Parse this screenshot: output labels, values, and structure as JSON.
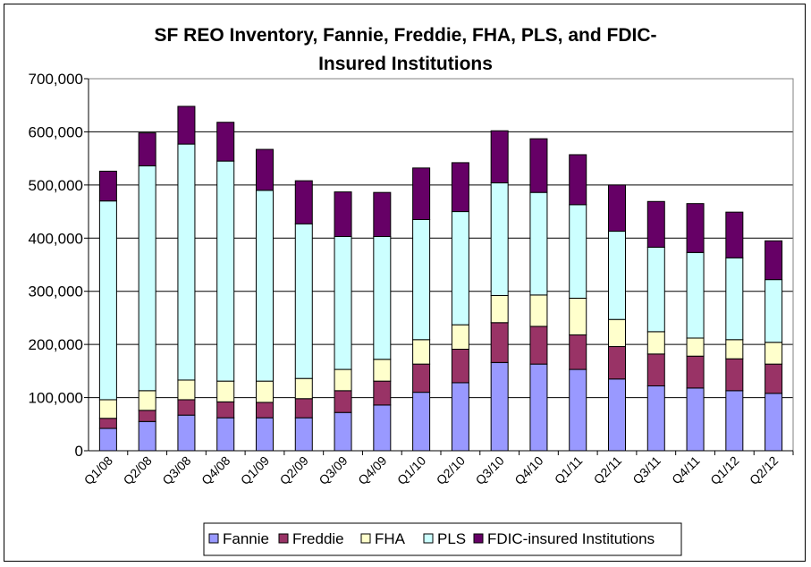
{
  "chart_data": {
    "type": "bar",
    "stacked": true,
    "title_lines": [
      "SF REO Inventory, Fannie, Freddie, FHA, PLS, and FDIC-",
      "Insured Institutions"
    ],
    "categories": [
      "Q1/08",
      "Q2/08",
      "Q3/08",
      "Q4/08",
      "Q1/09",
      "Q2/09",
      "Q3/09",
      "Q4/09",
      "Q1/10",
      "Q2/10",
      "Q3/10",
      "Q4/10",
      "Q1/11",
      "Q2/11",
      "Q3/11",
      "Q4/11",
      "Q1/12",
      "Q2/12"
    ],
    "xlabel": "",
    "ylabel": "",
    "ylim": [
      0,
      700000
    ],
    "yticks": [
      0,
      100000,
      200000,
      300000,
      400000,
      500000,
      600000,
      700000
    ],
    "ytick_labels": [
      "0",
      "100,000",
      "200,000",
      "300,000",
      "400,000",
      "500,000",
      "600,000",
      "700,000"
    ],
    "grid": true,
    "legend_position": "bottom",
    "series": [
      {
        "name": "Fannie",
        "color": "#9999ff",
        "values": [
          42000,
          55000,
          67000,
          62000,
          62000,
          62000,
          72000,
          86000,
          110000,
          128000,
          166000,
          163000,
          153000,
          135000,
          122000,
          118000,
          113000,
          108000
        ]
      },
      {
        "name": "Freddie",
        "color": "#993366",
        "values": [
          19000,
          21000,
          29000,
          30000,
          29000,
          36000,
          41000,
          45000,
          53000,
          63000,
          75000,
          71000,
          65000,
          61000,
          60000,
          60000,
          60000,
          55000
        ]
      },
      {
        "name": "FHA",
        "color": "#ffffcc",
        "values": [
          35000,
          37000,
          37000,
          39000,
          40000,
          38000,
          40000,
          41000,
          46000,
          46000,
          51000,
          59000,
          69000,
          51000,
          42000,
          34000,
          36000,
          41000
        ]
      },
      {
        "name": "PLS",
        "color": "#ccffff",
        "values": [
          374000,
          423000,
          444000,
          414000,
          359000,
          291000,
          250000,
          231000,
          226000,
          213000,
          212000,
          193000,
          176000,
          166000,
          159000,
          161000,
          154000,
          118000
        ]
      },
      {
        "name": "FDIC-insured Institutions",
        "color": "#660066",
        "values": [
          56000,
          62000,
          71000,
          73000,
          77000,
          81000,
          84000,
          83000,
          97000,
          92000,
          98000,
          101000,
          94000,
          87000,
          86000,
          92000,
          86000,
          73000
        ]
      }
    ]
  }
}
